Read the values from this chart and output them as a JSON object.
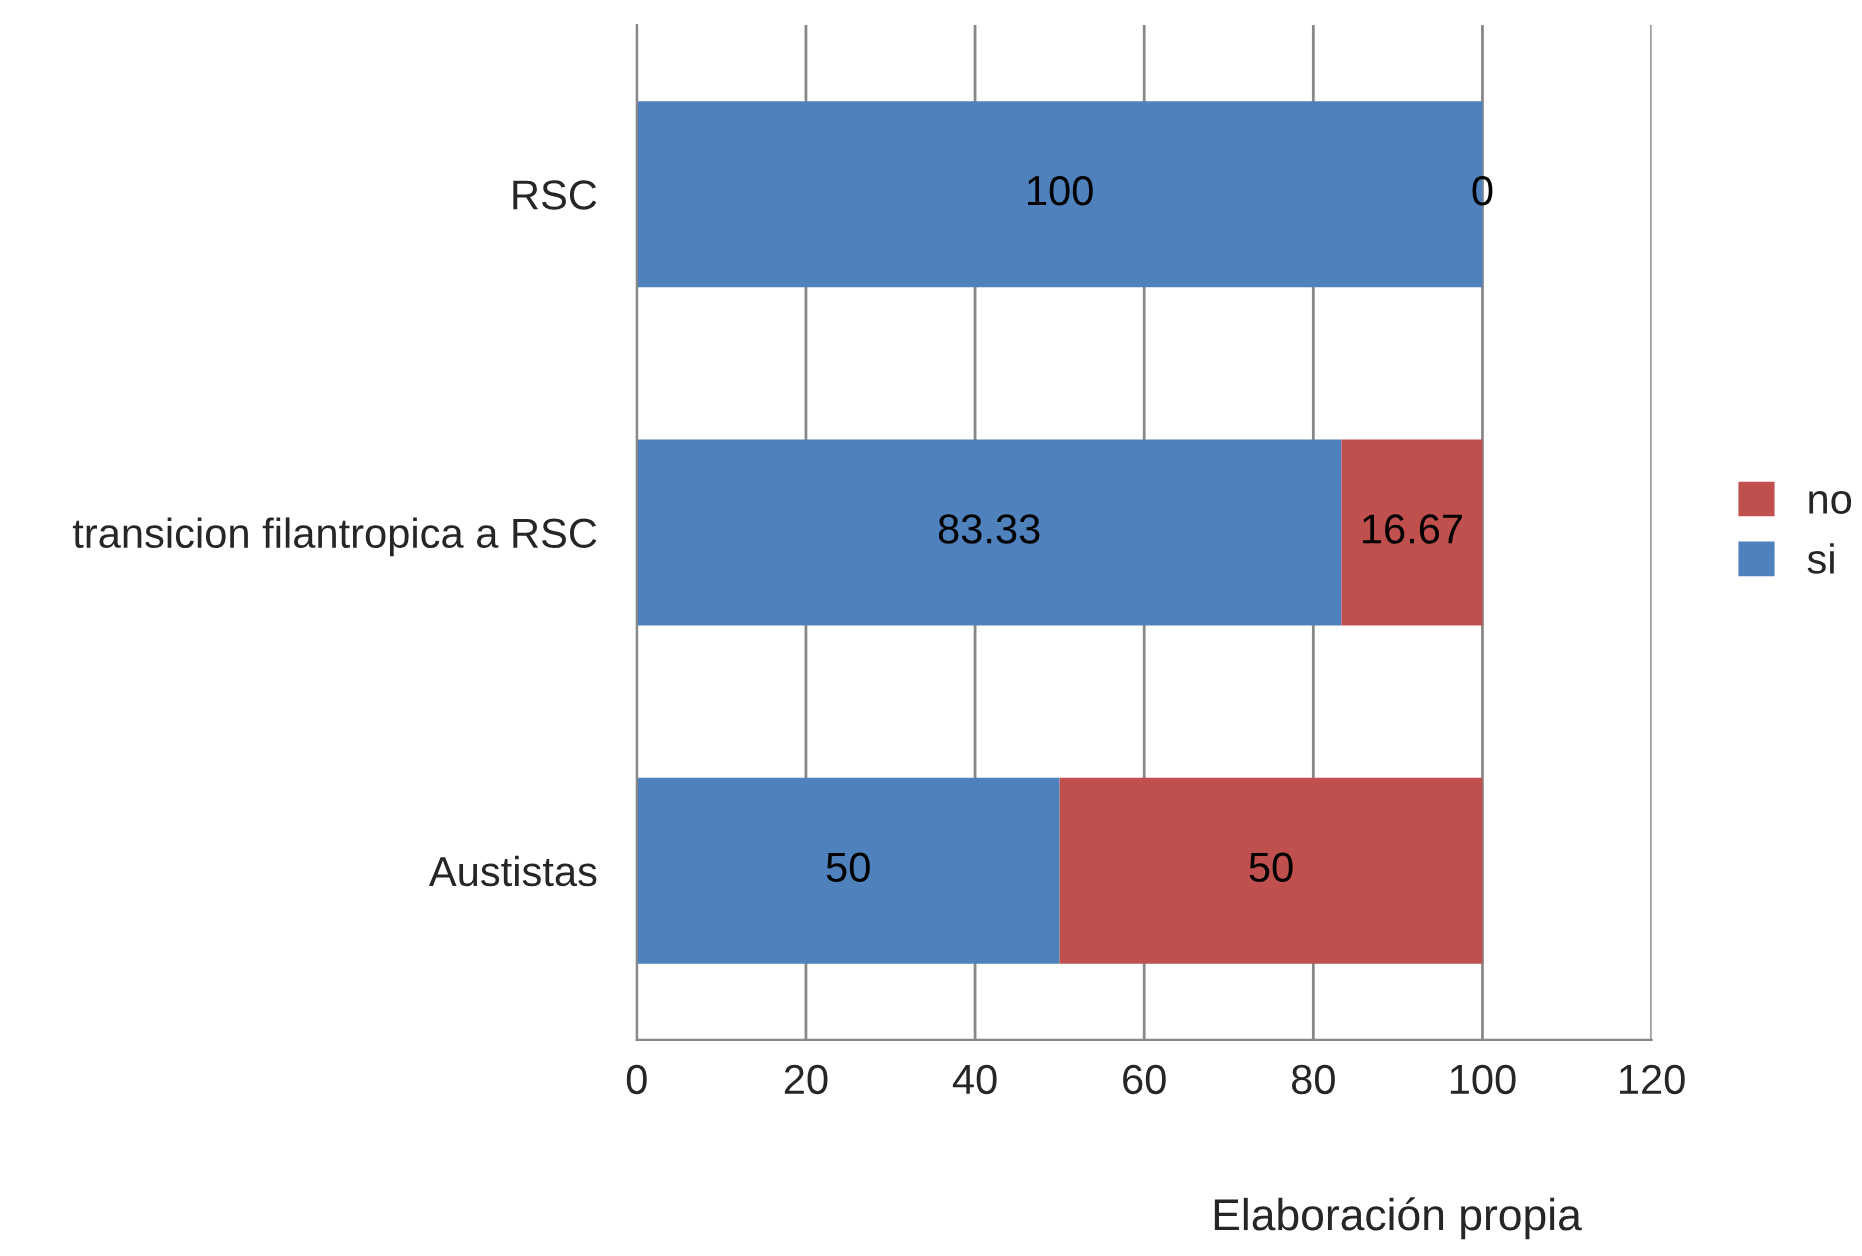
{
  "chart_data": {
    "type": "bar",
    "orientation": "horizontal",
    "stacked": true,
    "categories": [
      "RSC",
      "transicion filantropica a RSC",
      "Austistas"
    ],
    "series": [
      {
        "name": "si",
        "color": "#4f81bd",
        "values": [
          100,
          83.33,
          50
        ]
      },
      {
        "name": "no",
        "color": "#c0504d",
        "values": [
          0,
          16.67,
          50
        ]
      }
    ],
    "xlim": [
      0,
      120
    ],
    "xticks": [
      0,
      20,
      40,
      60,
      80,
      100,
      120
    ],
    "grid": "x",
    "legend": "right",
    "data_labels": true,
    "annotations": [
      "Elaboración propia"
    ]
  }
}
